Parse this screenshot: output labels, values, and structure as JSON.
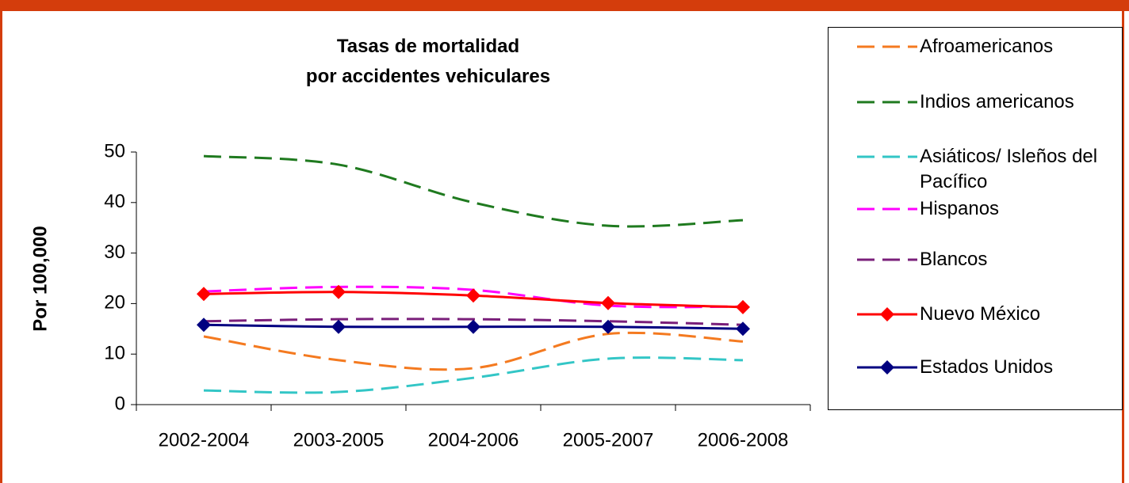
{
  "chart_data": {
    "type": "line",
    "title": "Tasas de mortalidad\npor accidentes vehiculares",
    "y_label": "Por 100,000",
    "categories": [
      "2002-2004",
      "2003-2005",
      "2004-2006",
      "2005-2007",
      "2006-2008"
    ],
    "ylim": [
      0,
      50
    ],
    "yticks": [
      0,
      10,
      20,
      30,
      40,
      50
    ],
    "smooth": true,
    "series": [
      {
        "name": "Afroamericanos",
        "color": "#f47a20",
        "dashed": true,
        "values": [
          13.5,
          8.8,
          7.2,
          14,
          12.5
        ]
      },
      {
        "name": "Indios americanos",
        "color": "#1f7a1f",
        "dashed": true,
        "values": [
          49.2,
          47.5,
          40,
          35.4,
          36.5
        ]
      },
      {
        "name": "Asiáticos/ Isleños del Pacífico",
        "color": "#33c6c6",
        "dashed": true,
        "values": [
          2.8,
          2.5,
          5.3,
          9.1,
          8.8
        ]
      },
      {
        "name": "Hispanos",
        "color": "#ff00ff",
        "dashed": true,
        "values": [
          22.4,
          23.3,
          22.7,
          19.6,
          19.4
        ]
      },
      {
        "name": "Blancos",
        "color": "#7a1f7a",
        "dashed": true,
        "values": [
          16.5,
          16.9,
          16.9,
          16.5,
          15.8
        ]
      },
      {
        "name": "Nuevo México",
        "color": "#ff0000",
        "marker": "diamond",
        "values": [
          21.9,
          22.3,
          21.6,
          20.1,
          19.3
        ]
      },
      {
        "name": "Estados Unidos",
        "color": "#000080",
        "marker": "diamond",
        "values": [
          15.8,
          15.4,
          15.4,
          15.4,
          15.0
        ]
      }
    ]
  }
}
